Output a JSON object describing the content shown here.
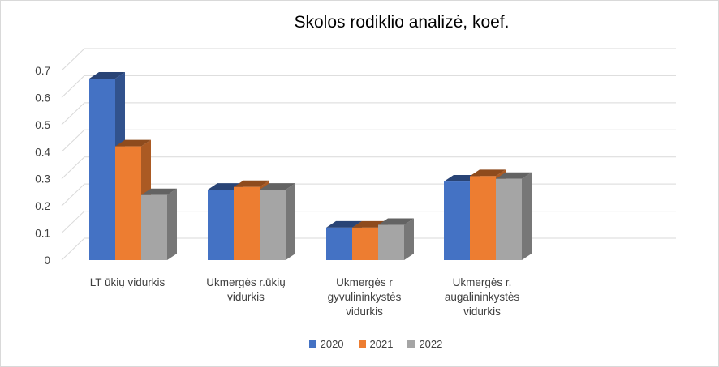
{
  "chart_data": {
    "type": "bar",
    "title": "Skolos rodiklio analizė, koef.",
    "categories": [
      "LT ūkių vidurkis",
      "Ukmergės r.ūkių vidurkis",
      "Ukmergės r gyvulininkystės vidurkis",
      "Ukmergės r. augalininkystės vidurkis"
    ],
    "series": [
      {
        "name": "2020",
        "color": "#4472c4",
        "values": [
          0.67,
          0.26,
          0.12,
          0.29
        ]
      },
      {
        "name": "2021",
        "color": "#ed7d31",
        "values": [
          0.42,
          0.27,
          0.12,
          0.31
        ]
      },
      {
        "name": "2022",
        "color": "#a5a5a5",
        "values": [
          0.24,
          0.26,
          0.13,
          0.3
        ]
      }
    ],
    "yticks": [
      "0",
      "0.1",
      "0.2",
      "0.3",
      "0.4",
      "0.5",
      "0.6",
      "0.7"
    ],
    "ylim": [
      0,
      0.7
    ],
    "grid": true,
    "legend_position": "bottom"
  }
}
